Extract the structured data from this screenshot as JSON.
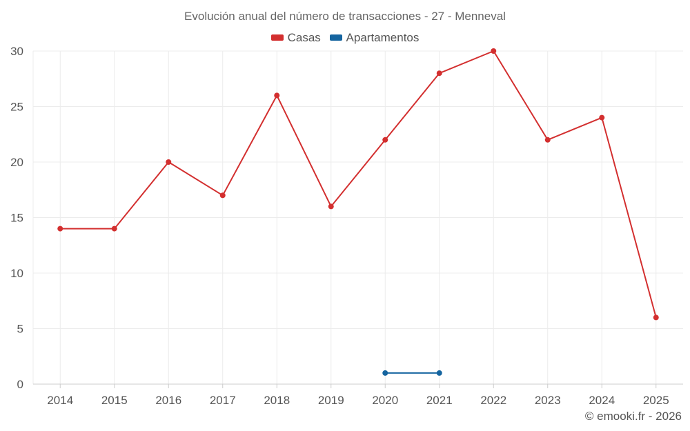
{
  "chart_data": {
    "type": "line",
    "title": "Evolución anual del número de transacciones - 27 - Menneval",
    "x": [
      "2014",
      "2015",
      "2016",
      "2017",
      "2018",
      "2019",
      "2020",
      "2021",
      "2022",
      "2023",
      "2024",
      "2025"
    ],
    "series": [
      {
        "name": "Casas",
        "color": "#d32f2f",
        "values": [
          14,
          14,
          20,
          17,
          26,
          16,
          22,
          28,
          30,
          22,
          24,
          6
        ]
      },
      {
        "name": "Apartamentos",
        "color": "#1565a0",
        "values": [
          null,
          null,
          null,
          null,
          null,
          null,
          1,
          1,
          null,
          null,
          null,
          null
        ]
      }
    ],
    "ylim": [
      0,
      30
    ],
    "yticks": [
      0,
      5,
      10,
      15,
      20,
      25,
      30
    ],
    "grid": true,
    "legend_position": "top-center"
  },
  "credit": "© emooki.fr - 2026"
}
